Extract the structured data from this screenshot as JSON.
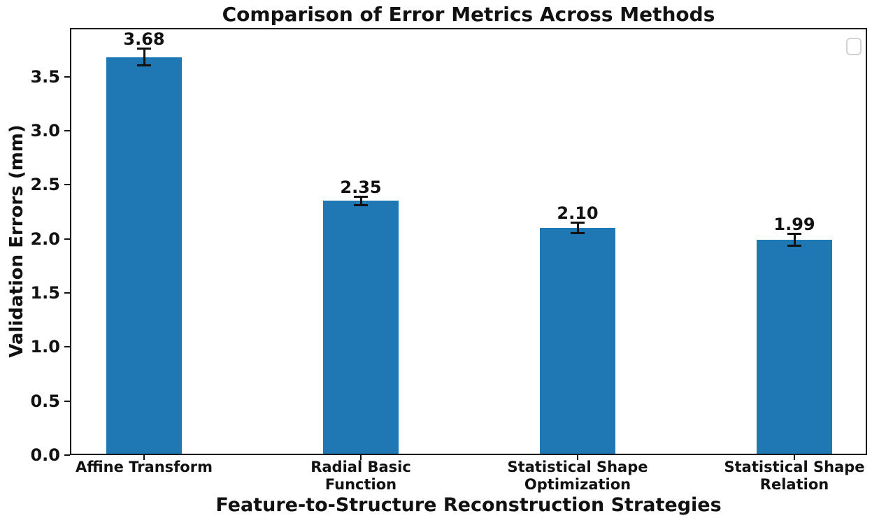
{
  "chart_data": {
    "type": "bar",
    "title": "Comparison of Error Metrics Across Methods",
    "xlabel": "Feature-to-Structure Reconstruction Strategies",
    "ylabel": "Validation Errors (mm)",
    "categories": [
      "Affine Transform",
      "Radial Basic\nFunction",
      "Statistical Shape\nOptimization",
      "Statistical Shape\nRelation"
    ],
    "values": [
      3.68,
      2.35,
      2.1,
      1.99
    ],
    "value_labels": [
      "3.68",
      "2.35",
      "2.10",
      "1.99"
    ],
    "errors": [
      0.08,
      0.04,
      0.05,
      0.06
    ],
    "bar_color": "#1f77b4",
    "error_bar_color": "#111111",
    "text_color": "#111111",
    "ylim": [
      0,
      3.95
    ],
    "yticks": [
      0.0,
      0.5,
      1.0,
      1.5,
      2.0,
      2.5,
      3.0,
      3.5
    ],
    "ytick_labels": [
      "0.0",
      "0.5",
      "1.0",
      "1.5",
      "2.0",
      "2.5",
      "3.0",
      "3.5"
    ],
    "grid": false,
    "legend": {
      "visible": true,
      "entries": [],
      "position": "upper-right"
    }
  }
}
